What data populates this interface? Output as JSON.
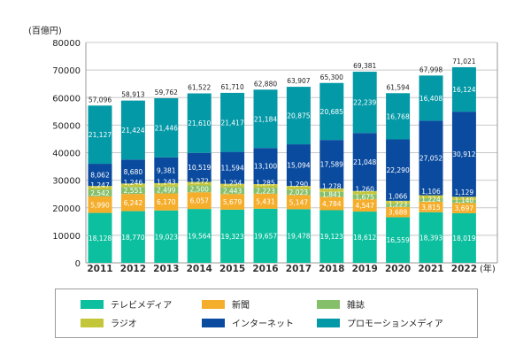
{
  "chart_data": {
    "type": "stacked-bar",
    "ylabel": "(百億円)",
    "xunit": "(年)",
    "ylim": [
      0,
      80000
    ],
    "yticks": [
      0,
      10000,
      20000,
      30000,
      40000,
      50000,
      60000,
      70000,
      80000
    ],
    "ytick_labels": [
      "0",
      "10000",
      "20000",
      "30000",
      "40000",
      "50000",
      "60000",
      "70000",
      "80000"
    ],
    "categories": [
      "2011",
      "2012",
      "2013",
      "2014",
      "2015",
      "2016",
      "2017",
      "2018",
      "2019",
      "2020",
      "2021",
      "2022"
    ],
    "totals": [
      57096,
      58913,
      59762,
      61522,
      61710,
      62880,
      63907,
      65300,
      69381,
      61594,
      67998,
      71021
    ],
    "total_labels": [
      "57,096",
      "58,913",
      "59,762",
      "61,522",
      "61,710",
      "62,880",
      "63,907",
      "65,300",
      "69,381",
      "61,594",
      "67,998",
      "71,021"
    ],
    "series": [
      {
        "name": "テレビメディア",
        "color": "#0cbf9f",
        "values": [
          18128,
          18770,
          19023,
          19564,
          19323,
          19657,
          19478,
          19123,
          18612,
          16559,
          18393,
          18019
        ]
      },
      {
        "name": "新聞",
        "color": "#f5ae2c",
        "values": [
          5990,
          6242,
          6170,
          6057,
          5679,
          5431,
          5147,
          4784,
          4547,
          3688,
          3815,
          3697
        ]
      },
      {
        "name": "雑誌",
        "color": "#86bf6a",
        "values": [
          2542,
          2551,
          2499,
          2500,
          2443,
          2223,
          2023,
          1841,
          1675,
          1223,
          1224,
          1140
        ]
      },
      {
        "name": "ラジオ",
        "color": "#c4c63a",
        "values": [
          1247,
          1246,
          1243,
          1272,
          1254,
          1285,
          1290,
          1278,
          1260,
          1066,
          1106,
          1129
        ]
      },
      {
        "name": "インターネット",
        "color": "#0b4b9f",
        "values": [
          8062,
          8680,
          9381,
          10519,
          11594,
          13100,
          15094,
          17589,
          21048,
          22290,
          27052,
          30912
        ]
      },
      {
        "name": "プロモーションメディア",
        "color": "#0499a7",
        "values": [
          21127,
          21424,
          21446,
          21610,
          21417,
          21184,
          20875,
          20685,
          22239,
          16768,
          16408,
          16124
        ]
      }
    ]
  }
}
